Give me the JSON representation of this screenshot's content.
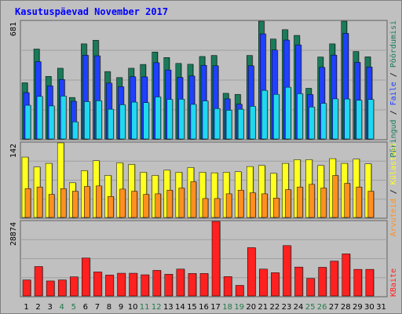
{
  "title": "Kasutuspäevad November 2017",
  "colors": {
    "visits": "#1a7a5a",
    "pages": "#2040ff",
    "hits": "#20d8f0",
    "hosts": "#ffff20",
    "files_dark": "#ff9020",
    "kbytes": "#ff2020",
    "weekend_label": "#207a4a",
    "weekday_label": "#000000"
  },
  "legend": {
    "top_right": [
      {
        "text": "Päringud",
        "color": "#1a7a5a"
      },
      {
        "text": " / ",
        "color": "#000000"
      },
      {
        "text": "Faile",
        "color": "#2040ff"
      },
      {
        "text": " / ",
        "color": "#000000"
      },
      {
        "text": "Pöördumisi",
        "color": "#1a7a5a"
      }
    ],
    "middle_left": [
      {
        "text": "Arvuteid",
        "color": "#ff9020"
      },
      {
        "text": " / ",
        "color": "#000000"
      },
      {
        "text": "Külastusi",
        "color": "#ffff20"
      }
    ],
    "bottom_right": [
      {
        "text": "KBaite",
        "color": "#ff2020"
      }
    ]
  },
  "chart_data": [
    {
      "type": "bar",
      "panel": "top",
      "ymax_label": "681",
      "ylim": [
        0,
        681
      ],
      "categories": [
        "1",
        "2",
        "3",
        "4",
        "5",
        "6",
        "7",
        "8",
        "9",
        "10",
        "11",
        "12",
        "13",
        "14",
        "15",
        "16",
        "17",
        "18",
        "19",
        "20",
        "21",
        "22",
        "23",
        "24",
        "25",
        "26",
        "27",
        "28",
        "29",
        "30",
        "31"
      ],
      "weekend": [
        4,
        5,
        11,
        12,
        18,
        19,
        25,
        26
      ],
      "series": [
        {
          "key": "visits",
          "values": [
            325,
            520,
            362,
            409,
            240,
            550,
            571,
            390,
            355,
            409,
            431,
            503,
            471,
            437,
            432,
            477,
            483,
            264,
            258,
            483,
            681,
            578,
            632,
            599,
            293,
            474,
            550,
            681,
            506,
            475,
            0
          ]
        },
        {
          "key": "pages",
          "values": [
            268,
            447,
            307,
            344,
            218,
            484,
            481,
            323,
            302,
            360,
            359,
            441,
            399,
            356,
            364,
            426,
            423,
            232,
            201,
            423,
            608,
            514,
            572,
            544,
            257,
            414,
            485,
            611,
            443,
            416,
            0
          ]
        },
        {
          "key": "hits",
          "values": [
            195,
            246,
            191,
            248,
            99,
            216,
            221,
            172,
            198,
            213,
            210,
            243,
            229,
            230,
            200,
            220,
            176,
            166,
            172,
            189,
            281,
            258,
            299,
            262,
            185,
            206,
            232,
            231,
            224,
            228,
            0
          ]
        }
      ]
    },
    {
      "type": "bar",
      "panel": "middle",
      "ymax_label": "142",
      "ylim": [
        0,
        142
      ],
      "categories": [
        "1",
        "2",
        "3",
        "4",
        "5",
        "6",
        "7",
        "8",
        "9",
        "10",
        "11",
        "12",
        "13",
        "14",
        "15",
        "16",
        "17",
        "18",
        "19",
        "20",
        "21",
        "22",
        "23",
        "24",
        "25",
        "26",
        "27",
        "28",
        "29",
        "30",
        "31"
      ],
      "series": [
        {
          "key": "hosts",
          "values": [
            115,
            96,
            103,
            142,
            66,
            89,
            108,
            80,
            104,
            101,
            86,
            80,
            90,
            86,
            95,
            86,
            85,
            86,
            87,
            97,
            99,
            84,
            103,
            110,
            110,
            99,
            112,
            103,
            111,
            102,
            0
          ]
        },
        {
          "key": "files_dark",
          "values": [
            55,
            58,
            44,
            55,
            50,
            59,
            60,
            40,
            54,
            50,
            44,
            45,
            52,
            56,
            68,
            36,
            36,
            45,
            52,
            47,
            45,
            37,
            53,
            58,
            63,
            56,
            80,
            65,
            58,
            50,
            0
          ]
        }
      ]
    },
    {
      "type": "bar",
      "panel": "bottom",
      "ymax_label": "28874",
      "ylim": [
        0,
        28874
      ],
      "categories": [
        "1",
        "2",
        "3",
        "4",
        "5",
        "6",
        "7",
        "8",
        "9",
        "10",
        "11",
        "12",
        "13",
        "14",
        "15",
        "16",
        "17",
        "18",
        "19",
        "20",
        "21",
        "22",
        "23",
        "24",
        "25",
        "26",
        "27",
        "28",
        "29",
        "30",
        "31"
      ],
      "series": [
        {
          "key": "kbytes",
          "values": [
            6200,
            11400,
            5800,
            6200,
            7400,
            14700,
            9300,
            8100,
            8800,
            8800,
            8200,
            9900,
            8400,
            10400,
            8700,
            8700,
            28874,
            7500,
            4100,
            18700,
            10400,
            9000,
            19500,
            11200,
            6800,
            11100,
            13500,
            16300,
            10300,
            10300,
            0
          ]
        }
      ]
    }
  ]
}
